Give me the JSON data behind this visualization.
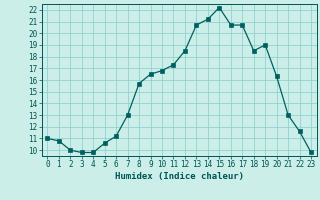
{
  "x": [
    0,
    1,
    2,
    3,
    4,
    5,
    6,
    7,
    8,
    9,
    10,
    11,
    12,
    13,
    14,
    15,
    16,
    17,
    18,
    19,
    20,
    21,
    22,
    23
  ],
  "y": [
    11,
    10.8,
    10,
    9.8,
    9.8,
    10.6,
    11.2,
    13,
    15.7,
    16.5,
    16.8,
    17.3,
    18.5,
    20.7,
    21.2,
    22.2,
    20.7,
    20.7,
    18.5,
    19,
    16.3,
    13,
    11.6,
    9.8
  ],
  "line_color": "#006060",
  "marker_color": "#006060",
  "bg_color": "#cceee8",
  "grid_color": "#88cccc",
  "xlabel": "Humidex (Indice chaleur)",
  "ylabel_ticks": [
    10,
    11,
    12,
    13,
    14,
    15,
    16,
    17,
    18,
    19,
    20,
    21,
    22
  ],
  "ylim": [
    9.5,
    22.5
  ],
  "xlim": [
    -0.5,
    23.5
  ],
  "xticks": [
    0,
    1,
    2,
    3,
    4,
    5,
    6,
    7,
    8,
    9,
    10,
    11,
    12,
    13,
    14,
    15,
    16,
    17,
    18,
    19,
    20,
    21,
    22,
    23
  ],
  "font_color": "#005555",
  "tick_fontsize": 5.5,
  "xlabel_fontsize": 6.5
}
